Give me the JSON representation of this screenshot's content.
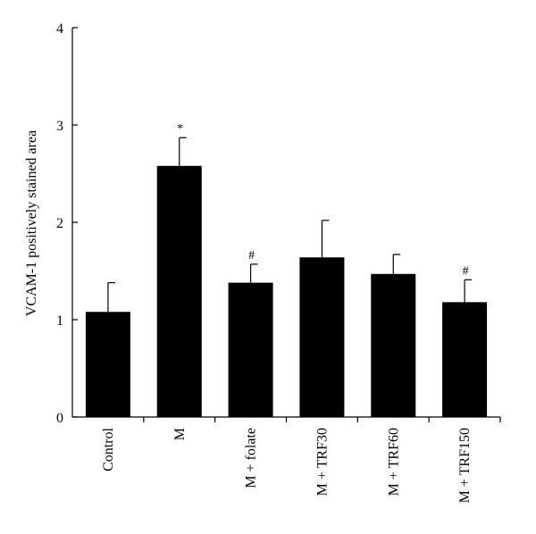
{
  "chart_data": {
    "type": "bar",
    "title": "",
    "xlabel": "",
    "ylabel": "VCAM-1 positively stained area",
    "ylim": [
      0,
      4
    ],
    "yticks": [
      "0",
      "1",
      "2",
      "3",
      "4"
    ],
    "grid": false,
    "legend": "none",
    "categories": [
      "Control",
      "M",
      "M + folate",
      "M + TRF30",
      "M + TRF60",
      "M + TRF150"
    ],
    "series": [
      {
        "values": [
          1.08,
          2.58,
          1.38,
          1.64,
          1.47,
          1.18
        ],
        "errors": [
          0.3,
          0.29,
          0.19,
          0.38,
          0.2,
          0.23
        ],
        "significance": [
          "",
          "*",
          "#",
          "",
          "",
          "#"
        ],
        "color": "#000000"
      }
    ]
  }
}
